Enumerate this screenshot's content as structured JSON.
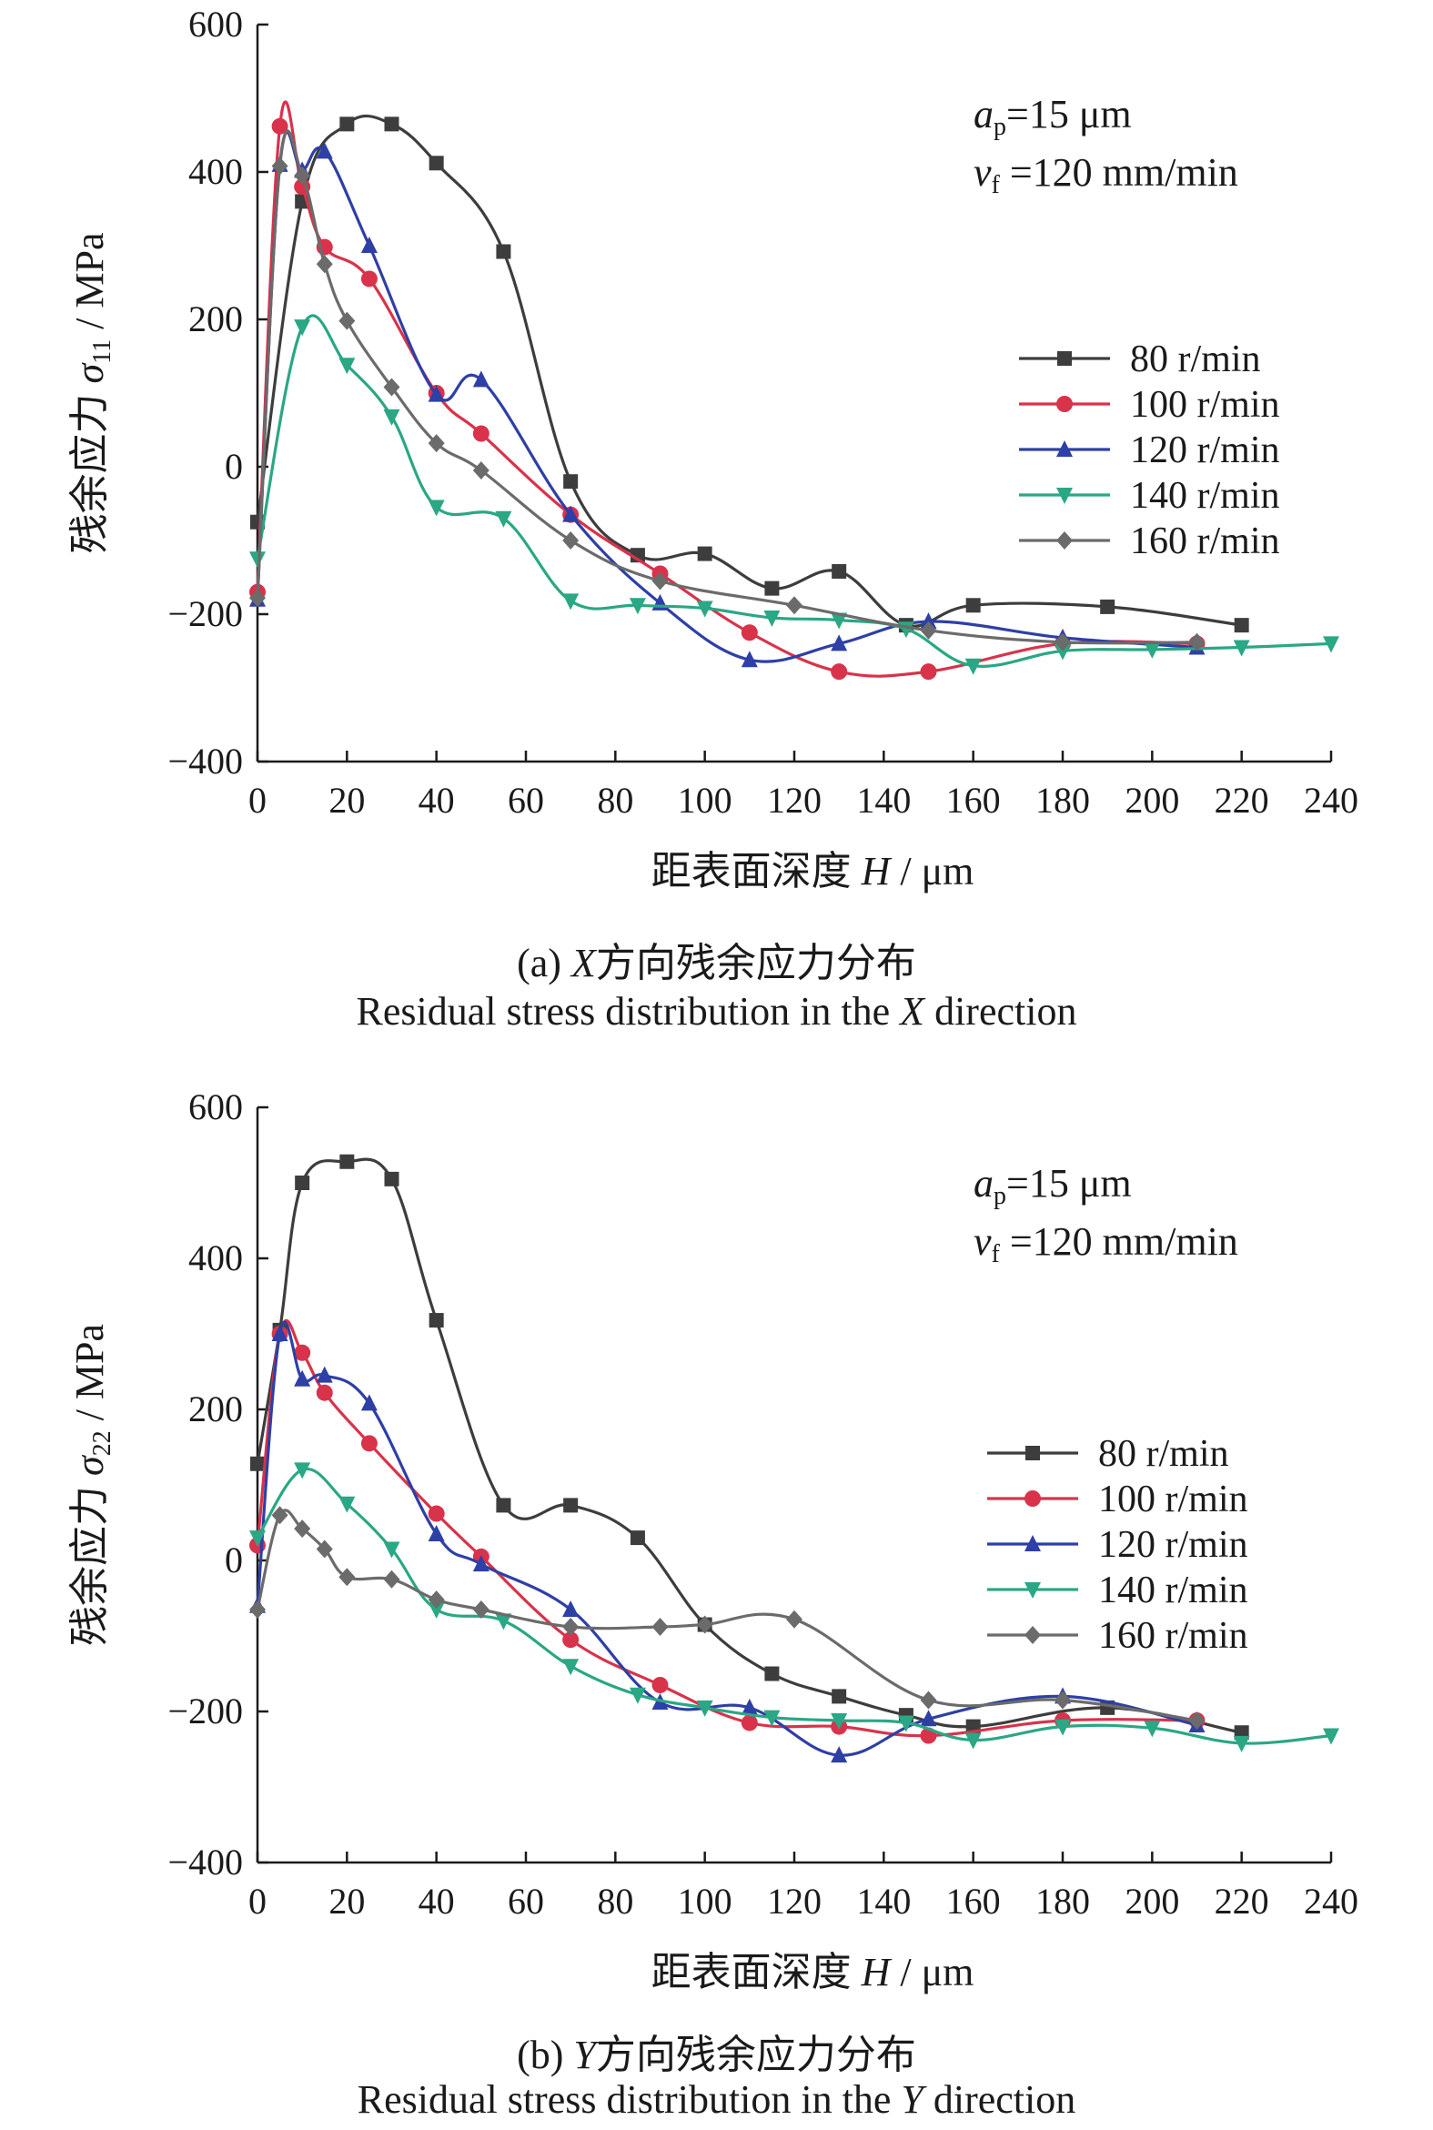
{
  "chart_data": [
    {
      "type": "line",
      "panel": "a",
      "xlabel_cn": "距表面深度",
      "xlabel_var": "H",
      "xlabel_unit": "/ μm",
      "ylabel_cn": "残余应力",
      "ylabel_var": "σ",
      "ylabel_sub": "11",
      "ylabel_unit": "/ MPa",
      "xlim": [
        0,
        240
      ],
      "ylim": [
        -400,
        600
      ],
      "xticks": [
        0,
        20,
        40,
        60,
        80,
        100,
        120,
        140,
        160,
        180,
        200,
        220,
        240
      ],
      "yticks": [
        -400,
        -200,
        0,
        200,
        400,
        600
      ],
      "annotations": {
        "ap_var": "a",
        "ap_sub": "p",
        "ap_value": "=15 μm",
        "vf_var": "v",
        "vf_sub": "f",
        "vf_value": " =120 mm/min"
      },
      "legend_position": "right",
      "caption_cn_prefix": "(a)",
      "caption_cn_var": "X",
      "caption_cn_text": "方向残余应力分布",
      "caption_en_text": "Residual stress distribution in the",
      "caption_en_var": "X",
      "caption_en_suffix": "direction",
      "series": [
        {
          "name": "80 r/min",
          "color": "#3d3d3d",
          "marker": "square",
          "x": [
            0,
            10,
            20,
            30,
            40,
            55,
            70,
            85,
            100,
            115,
            130,
            145,
            160,
            190,
            220
          ],
          "y": [
            -75,
            360,
            465,
            465,
            412,
            292,
            -20,
            -120,
            -118,
            -165,
            -142,
            -215,
            -188,
            -190,
            -215
          ]
        },
        {
          "name": "100 r/min",
          "color": "#d8334a",
          "marker": "circle",
          "x": [
            0,
            5,
            10,
            15,
            25,
            40,
            50,
            70,
            90,
            110,
            130,
            150,
            180,
            210
          ],
          "y": [
            -170,
            462,
            380,
            298,
            255,
            100,
            45,
            -65,
            -145,
            -225,
            -278,
            -278,
            -240,
            -240
          ]
        },
        {
          "name": "120 r/min",
          "color": "#2e3fa6",
          "marker": "triangle",
          "x": [
            0,
            5,
            10,
            15,
            25,
            40,
            50,
            70,
            90,
            110,
            130,
            150,
            180,
            210
          ],
          "y": [
            -180,
            410,
            402,
            428,
            300,
            98,
            118,
            -65,
            -185,
            -262,
            -240,
            -210,
            -232,
            -245
          ]
        },
        {
          "name": "140 r/min",
          "color": "#2aa784",
          "marker": "triangle-down",
          "x": [
            0,
            10,
            20,
            30,
            40,
            55,
            70,
            85,
            100,
            115,
            130,
            145,
            160,
            180,
            200,
            220,
            240
          ],
          "y": [
            -125,
            190,
            138,
            68,
            -55,
            -70,
            -182,
            -188,
            -192,
            -205,
            -208,
            -220,
            -270,
            -250,
            -248,
            -245,
            -240
          ]
        },
        {
          "name": "160 r/min",
          "color": "#6b6b6b",
          "marker": "diamond",
          "x": [
            0,
            5,
            10,
            15,
            20,
            30,
            40,
            50,
            70,
            90,
            120,
            150,
            180,
            210
          ],
          "y": [
            -178,
            408,
            395,
            275,
            198,
            108,
            32,
            -5,
            -100,
            -155,
            -188,
            -222,
            -238,
            -238
          ]
        }
      ]
    },
    {
      "type": "line",
      "panel": "b",
      "xlabel_cn": "距表面深度",
      "xlabel_var": "H",
      "xlabel_unit": "/ μm",
      "ylabel_cn": "残余应力",
      "ylabel_var": "σ",
      "ylabel_sub": "22",
      "ylabel_unit": "/ MPa",
      "xlim": [
        0,
        240
      ],
      "ylim": [
        -400,
        600
      ],
      "xticks": [
        0,
        20,
        40,
        60,
        80,
        100,
        120,
        140,
        160,
        180,
        200,
        220,
        240
      ],
      "yticks": [
        -400,
        -200,
        0,
        200,
        400,
        600
      ],
      "annotations": {
        "ap_var": "a",
        "ap_sub": "p",
        "ap_value": "=15 μm",
        "vf_var": "v",
        "vf_sub": "f",
        "vf_value": " =120 mm/min"
      },
      "legend_position": "right",
      "caption_cn_prefix": "(b)",
      "caption_cn_var": "Y",
      "caption_cn_text": "方向残余应力分布",
      "caption_en_text": "Residual stress distribution in the",
      "caption_en_var": "Y",
      "caption_en_suffix": "direction",
      "series": [
        {
          "name": "80 r/min",
          "color": "#3d3d3d",
          "marker": "square",
          "x": [
            0,
            5,
            10,
            20,
            30,
            40,
            55,
            70,
            85,
            100,
            115,
            130,
            145,
            160,
            190,
            220
          ],
          "y": [
            128,
            305,
            500,
            528,
            505,
            318,
            73,
            73,
            30,
            -85,
            -150,
            -180,
            -205,
            -220,
            -195,
            -228
          ]
        },
        {
          "name": "100 r/min",
          "color": "#d8334a",
          "marker": "circle",
          "x": [
            0,
            5,
            10,
            15,
            25,
            40,
            50,
            70,
            90,
            110,
            130,
            150,
            180,
            210
          ],
          "y": [
            20,
            300,
            275,
            222,
            155,
            62,
            5,
            -105,
            -165,
            -215,
            -220,
            -232,
            -212,
            -212
          ]
        },
        {
          "name": "120 r/min",
          "color": "#2e3fa6",
          "marker": "triangle",
          "x": [
            0,
            5,
            10,
            15,
            25,
            40,
            50,
            70,
            90,
            110,
            130,
            150,
            180,
            210
          ],
          "y": [
            -60,
            300,
            240,
            245,
            208,
            35,
            -5,
            -65,
            -188,
            -195,
            -258,
            -210,
            -180,
            -218
          ]
        },
        {
          "name": "140 r/min",
          "color": "#2aa784",
          "marker": "triangle-down",
          "x": [
            0,
            10,
            20,
            30,
            40,
            55,
            70,
            85,
            100,
            115,
            130,
            145,
            160,
            180,
            200,
            220,
            240
          ],
          "y": [
            30,
            120,
            75,
            15,
            -65,
            -80,
            -140,
            -178,
            -195,
            -208,
            -212,
            -215,
            -238,
            -220,
            -222,
            -242,
            -232
          ]
        },
        {
          "name": "160 r/min",
          "color": "#6b6b6b",
          "marker": "diamond",
          "x": [
            0,
            5,
            10,
            15,
            20,
            30,
            40,
            50,
            70,
            90,
            100,
            120,
            150,
            180,
            210
          ],
          "y": [
            -65,
            60,
            42,
            15,
            -22,
            -25,
            -52,
            -65,
            -88,
            -88,
            -85,
            -78,
            -185,
            -185,
            -212
          ]
        }
      ]
    }
  ]
}
